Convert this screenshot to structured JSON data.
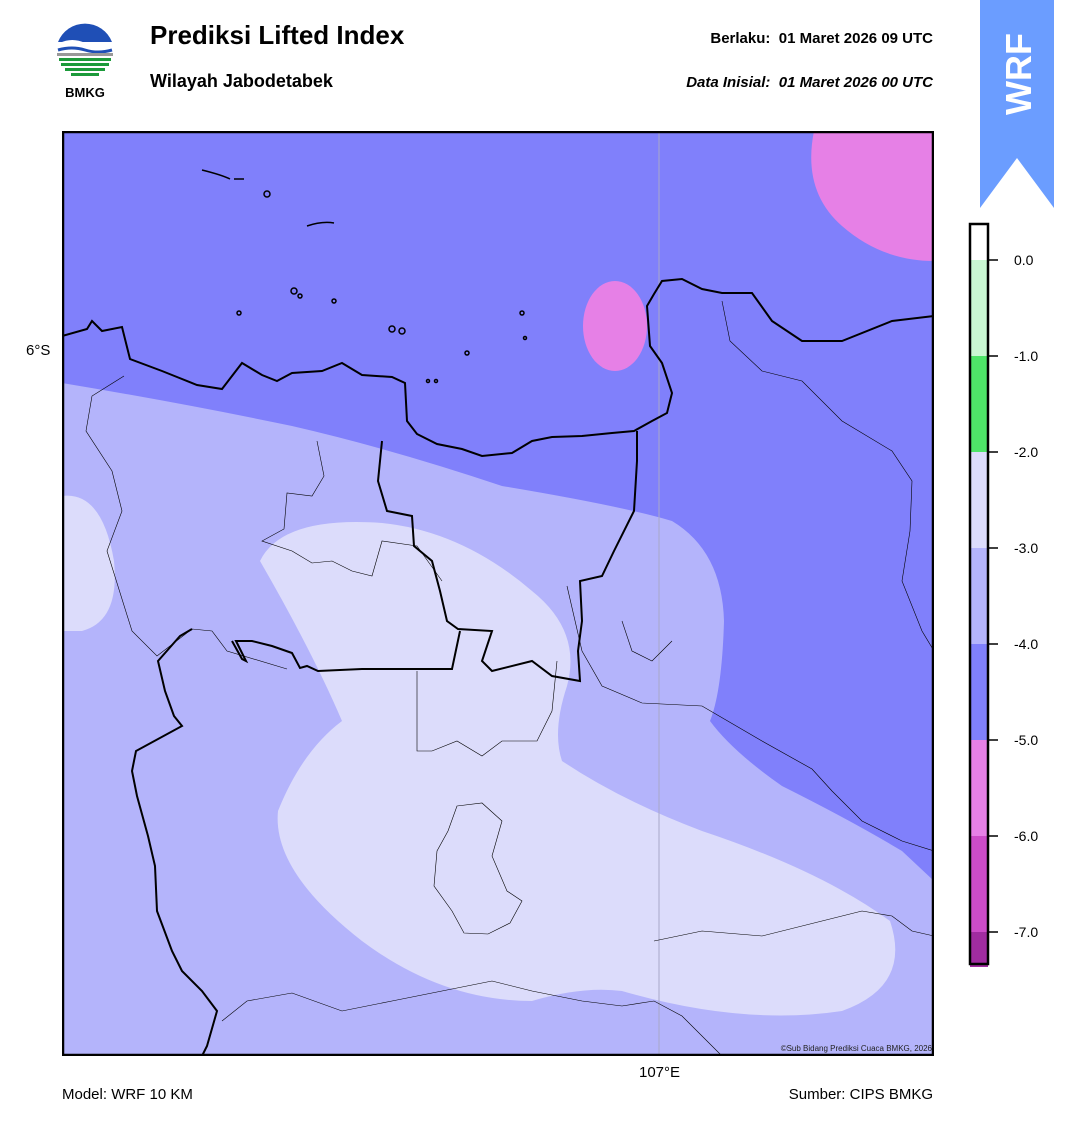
{
  "header": {
    "title": "Prediksi Lifted Index",
    "subtitle": "Wilayah Jabodetabek",
    "valid_label": "Berlaku:",
    "valid_time": "01 Maret 2026 09 UTC",
    "init_label": "Data Inisial:",
    "init_time": "01 Maret 2026 00 UTC"
  },
  "logo": {
    "text": "BMKG",
    "icon": "bmkg-logo-icon"
  },
  "badge": {
    "text": "WRF",
    "color": "#6b9dff"
  },
  "map": {
    "lat_label": "6°S",
    "lon_label": "107°E",
    "credit": "©Sub Bidang Prediksi Cuaca BMKG, 2026"
  },
  "legend": {
    "ticks": [
      "0.0",
      "-1.0",
      "-2.0",
      "-3.0",
      "-4.0",
      "-5.0",
      "-6.0",
      "-7.0"
    ],
    "colors": {
      "band_0": "#ffffff",
      "band_m1": "#c9f7d2",
      "band_m2": "#4ee468",
      "band_m3": "#dcdcfb",
      "band_m4": "#b4b4fb",
      "band_m5": "#8080fb",
      "band_m6": "#e680e6",
      "band_m7": "#cc4cc8",
      "band_m8": "#a02ca0",
      "band_m9": "#7a1a7a"
    }
  },
  "footer": {
    "model": "Model: WRF 10 KM",
    "source": "Sumber: CIPS BMKG"
  }
}
